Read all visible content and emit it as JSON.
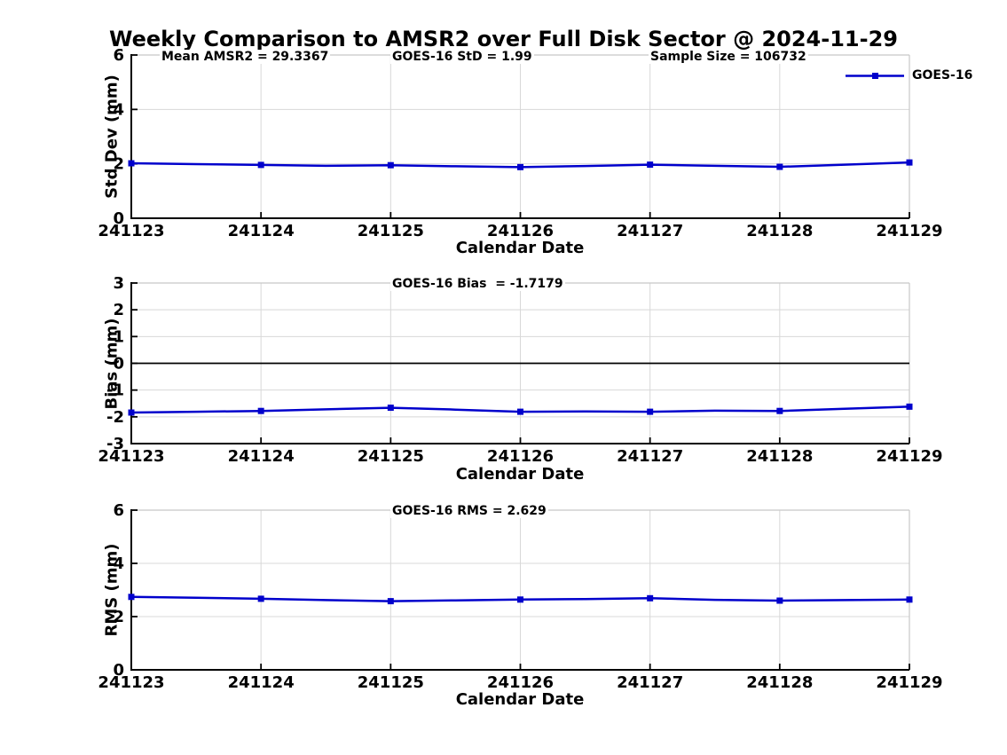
{
  "figure": {
    "title": "Weekly Comparison to AMSR2 over Full Disk Sector @ 2024-11-29"
  },
  "legend": {
    "label": "GOES-16",
    "position": "top-right"
  },
  "colors": {
    "line": "#0000cc",
    "grid": "#d8d8d8",
    "box": "#c8c8c8",
    "spine": "#000000",
    "zero_line": "#000000",
    "text": "#000000",
    "background": "#ffffff"
  },
  "chart_data": [
    {
      "type": "line",
      "ylabel": "Std Dev (mm)",
      "xlabel": "Calendar Date",
      "ylim": [
        0,
        6
      ],
      "yticks": [
        0,
        2,
        4,
        6
      ],
      "grid": true,
      "zero_line": false,
      "xticklabels": [
        "241123",
        "241124",
        "241125",
        "241126",
        "241127",
        "241128",
        "241129"
      ],
      "x_days": [
        0,
        0.5,
        1,
        1.5,
        2,
        2.5,
        3,
        3.5,
        4,
        4.5,
        5,
        5.5,
        6
      ],
      "marker_days": [
        0,
        1,
        2,
        3,
        4,
        5,
        6
      ],
      "series": [
        {
          "name": "GOES-16",
          "values": [
            2.02,
            1.99,
            1.96,
            1.93,
            1.95,
            1.91,
            1.88,
            1.92,
            1.97,
            1.93,
            1.89,
            1.97,
            2.05
          ]
        }
      ],
      "annotations": [
        {
          "text": "Mean AMSR2 = 29.3367"
        },
        {
          "text": "GOES-16 StD = 1.99"
        },
        {
          "text": "Sample Size = 106732"
        }
      ]
    },
    {
      "type": "line",
      "ylabel": "Bias (mm)",
      "xlabel": "Calendar Date",
      "ylim": [
        -3,
        3
      ],
      "yticks": [
        -3,
        -2,
        -1,
        0,
        1,
        2,
        3
      ],
      "grid": true,
      "zero_line": true,
      "xticklabels": [
        "241123",
        "241124",
        "241125",
        "241126",
        "241127",
        "241128",
        "241129"
      ],
      "x_days": [
        0,
        0.5,
        1,
        1.5,
        2,
        2.5,
        3,
        3.5,
        4,
        4.5,
        5,
        5.5,
        6
      ],
      "marker_days": [
        0,
        1,
        2,
        3,
        4,
        5,
        6
      ],
      "series": [
        {
          "name": "GOES-16",
          "values": [
            -1.84,
            -1.81,
            -1.78,
            -1.72,
            -1.66,
            -1.73,
            -1.81,
            -1.8,
            -1.81,
            -1.77,
            -1.78,
            -1.7,
            -1.62
          ]
        }
      ],
      "annotations": [
        {
          "text": "GOES-16 Bias  = -1.7179"
        }
      ]
    },
    {
      "type": "line",
      "ylabel": "RMS (mm)",
      "xlabel": "Calendar Date",
      "ylim": [
        0,
        6
      ],
      "yticks": [
        0,
        2,
        4,
        6
      ],
      "grid": true,
      "zero_line": false,
      "xticklabels": [
        "241123",
        "241124",
        "241125",
        "241126",
        "241127",
        "241128",
        "241129"
      ],
      "x_days": [
        0,
        0.5,
        1,
        1.5,
        2,
        2.5,
        3,
        3.5,
        4,
        4.5,
        5,
        5.5,
        6
      ],
      "marker_days": [
        0,
        1,
        2,
        3,
        4,
        5,
        6
      ],
      "series": [
        {
          "name": "GOES-16",
          "values": [
            2.74,
            2.71,
            2.67,
            2.62,
            2.58,
            2.61,
            2.64,
            2.66,
            2.69,
            2.63,
            2.6,
            2.62,
            2.64
          ]
        }
      ],
      "annotations": [
        {
          "text": "GOES-16 RMS = 2.629"
        }
      ]
    }
  ]
}
